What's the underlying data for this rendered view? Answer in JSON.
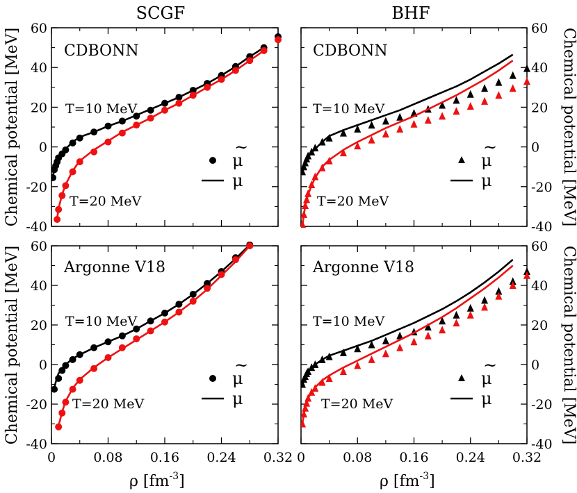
{
  "figure": {
    "col_titles": [
      "SCGF",
      "BHF"
    ],
    "xlabel": "ρ [fm",
    "xlabel_sup": "-3",
    "xlabel_end": "]",
    "ylabel": "Chemical potential [MeV]",
    "legend": {
      "mu_tilde": "μ",
      "tilde_mark": "~",
      "mu": "μ"
    },
    "colors": {
      "T10": "#000000",
      "T20": "#ee1111"
    }
  },
  "chart_data": [
    {
      "type": "line",
      "panel": "top-left",
      "method": "SCGF",
      "model_label": "CDBONN",
      "temp_labels": {
        "T10": "T=10 MeV",
        "T20": "T=20 MeV"
      },
      "xlim": [
        0,
        0.32
      ],
      "ylim": [
        -40,
        60
      ],
      "xticks": [
        0,
        0.08,
        0.16,
        0.24,
        0.32
      ],
      "xtick_labels": [
        "0",
        "0.08",
        "0.16",
        "0.24",
        "0.32"
      ],
      "yticks": [
        -40,
        -20,
        0,
        20,
        40,
        60
      ],
      "ytick_labels": [
        "-40",
        "-20",
        "0",
        "20",
        "40",
        "60"
      ],
      "series": [
        {
          "name": "μ T=10 MeV",
          "kind": "line",
          "color": "#000000",
          "x": [
            0.002,
            0.004,
            0.006,
            0.008,
            0.01,
            0.015,
            0.02,
            0.03,
            0.04,
            0.06,
            0.08,
            0.1,
            0.12,
            0.14,
            0.16,
            0.18,
            0.2,
            0.22,
            0.24,
            0.26,
            0.28,
            0.3
          ],
          "y": [
            -15,
            -11,
            -9,
            -7,
            -5,
            -3,
            -1,
            2.5,
            5,
            7.5,
            10.5,
            13,
            16,
            19,
            22,
            25,
            28.5,
            32,
            36,
            40.5,
            45.5,
            50
          ]
        },
        {
          "name": "μ̃ T=10 MeV",
          "kind": "circle",
          "color": "#000000",
          "x": [
            0.002,
            0.004,
            0.006,
            0.008,
            0.01,
            0.015,
            0.02,
            0.03,
            0.04,
            0.06,
            0.08,
            0.1,
            0.12,
            0.14,
            0.16,
            0.18,
            0.2,
            0.22,
            0.24,
            0.26,
            0.28,
            0.3,
            0.32
          ],
          "y": [
            -15.5,
            -11.5,
            -9.5,
            -7.5,
            -5.5,
            -3.5,
            -1.5,
            2,
            4.5,
            7.5,
            10.5,
            13,
            15.5,
            18.5,
            22,
            25,
            28.5,
            32,
            36,
            40.5,
            45.5,
            50,
            55.5
          ]
        },
        {
          "name": "μ T=20 MeV",
          "kind": "line",
          "color": "#ee1111",
          "x": [
            0.008,
            0.01,
            0.015,
            0.02,
            0.03,
            0.04,
            0.06,
            0.08,
            0.1,
            0.12,
            0.14,
            0.16,
            0.18,
            0.2,
            0.22,
            0.24,
            0.26,
            0.28,
            0.3
          ],
          "y": [
            -36,
            -31,
            -24,
            -19,
            -12,
            -7,
            -1.5,
            3,
            7.5,
            11,
            14.5,
            18.5,
            22,
            26,
            30,
            34,
            38.5,
            43.5,
            48.5
          ]
        },
        {
          "name": "μ̃ T=20 MeV",
          "kind": "circle",
          "color": "#ee1111",
          "x": [
            0.008,
            0.01,
            0.015,
            0.02,
            0.03,
            0.04,
            0.06,
            0.08,
            0.1,
            0.12,
            0.14,
            0.16,
            0.18,
            0.2,
            0.22,
            0.24,
            0.26,
            0.28,
            0.3,
            0.32
          ],
          "y": [
            -36.5,
            -31.5,
            -24.5,
            -19.5,
            -12.5,
            -7.5,
            -2.5,
            2.5,
            7,
            11,
            14.5,
            18.5,
            22,
            26,
            30,
            34,
            38.5,
            43.5,
            48.5,
            54
          ]
        }
      ]
    },
    {
      "type": "line",
      "panel": "top-right",
      "method": "BHF",
      "model_label": "CDBONN",
      "temp_labels": {
        "T10": "T=10 MeV",
        "T20": "T=20 MeV"
      },
      "xlim": [
        0,
        0.32
      ],
      "ylim": [
        -40,
        60
      ],
      "xticks": [
        0,
        0.08,
        0.16,
        0.24,
        0.32
      ],
      "xtick_labels": [
        "0",
        "0.08",
        "0.16",
        "0.24",
        "0.32"
      ],
      "yticks": [
        -40,
        -20,
        0,
        20,
        40,
        60
      ],
      "ytick_labels": [
        "-40",
        "-20",
        "0",
        "20",
        "40",
        "60"
      ],
      "series": [
        {
          "name": "μ T=10 MeV",
          "kind": "line",
          "color": "#000000",
          "x": [
            0.002,
            0.004,
            0.006,
            0.008,
            0.01,
            0.015,
            0.02,
            0.03,
            0.04,
            0.06,
            0.08,
            0.1,
            0.12,
            0.14,
            0.16,
            0.18,
            0.2,
            0.22,
            0.24,
            0.26,
            0.28,
            0.3
          ],
          "y": [
            -13,
            -10.5,
            -8.5,
            -6.5,
            -5,
            -3,
            -1,
            2.5,
            5.5,
            8.5,
            11,
            13.5,
            16,
            18.5,
            21.5,
            24.5,
            27.5,
            30.5,
            34,
            38,
            42,
            46.5
          ]
        },
        {
          "name": "μ̃ T=10 MeV",
          "kind": "triangle",
          "color": "#000000",
          "x": [
            0.002,
            0.004,
            0.006,
            0.008,
            0.01,
            0.015,
            0.02,
            0.03,
            0.04,
            0.06,
            0.08,
            0.1,
            0.12,
            0.14,
            0.16,
            0.18,
            0.2,
            0.22,
            0.24,
            0.26,
            0.28,
            0.3,
            0.32
          ],
          "y": [
            -12.5,
            -10,
            -8,
            -6,
            -4.5,
            -2.5,
            -0.5,
            2.5,
            4.5,
            7,
            9,
            11,
            13,
            15,
            17,
            19,
            21,
            23.5,
            26.5,
            29.5,
            32.5,
            36,
            39.5
          ]
        },
        {
          "name": "μ T=20 MeV",
          "kind": "line",
          "color": "#ee1111",
          "x": [
            0.002,
            0.004,
            0.006,
            0.008,
            0.01,
            0.015,
            0.02,
            0.03,
            0.04,
            0.06,
            0.08,
            0.1,
            0.12,
            0.14,
            0.16,
            0.18,
            0.2,
            0.22,
            0.24,
            0.26,
            0.28,
            0.3
          ],
          "y": [
            -40,
            -34,
            -30,
            -27,
            -24,
            -19.5,
            -15.5,
            -10,
            -6.5,
            -1.5,
            2.5,
            6,
            9.5,
            12.5,
            15.5,
            19,
            22.5,
            26,
            30,
            34,
            38.5,
            43.5
          ]
        },
        {
          "name": "μ̃ T=20 MeV",
          "kind": "triangle",
          "color": "#ee1111",
          "x": [
            0.002,
            0.004,
            0.006,
            0.008,
            0.01,
            0.015,
            0.02,
            0.03,
            0.04,
            0.06,
            0.08,
            0.1,
            0.12,
            0.14,
            0.16,
            0.18,
            0.2,
            0.22,
            0.24,
            0.26,
            0.28,
            0.3,
            0.32
          ],
          "y": [
            -39,
            -34,
            -29.5,
            -26.5,
            -23.5,
            -19,
            -15,
            -10.5,
            -7,
            -3,
            0.5,
            3.5,
            6.5,
            9,
            11.5,
            13.5,
            15.5,
            18,
            20.5,
            23,
            26,
            29.5,
            33
          ]
        }
      ]
    },
    {
      "type": "line",
      "panel": "bottom-left",
      "method": "SCGF",
      "model_label": "Argonne V18",
      "temp_labels": {
        "T10": "T=10 MeV",
        "T20": "T=20 MeV"
      },
      "xlim": [
        0,
        0.32
      ],
      "ylim": [
        -40,
        60
      ],
      "xticks": [
        0,
        0.08,
        0.16,
        0.24,
        0.32
      ],
      "xtick_labels": [
        "0",
        "0.08",
        "0.16",
        "0.24",
        "0.32"
      ],
      "yticks": [
        -40,
        -20,
        0,
        20,
        40,
        60
      ],
      "ytick_labels": [
        "-40",
        "-20",
        "0",
        "20",
        "40",
        "60"
      ],
      "series": [
        {
          "name": "μ T=10 MeV",
          "kind": "line",
          "color": "#000000",
          "x": [
            0.004,
            0.006,
            0.008,
            0.01,
            0.015,
            0.02,
            0.03,
            0.04,
            0.06,
            0.08,
            0.1,
            0.12,
            0.14,
            0.16,
            0.18,
            0.2,
            0.22,
            0.24,
            0.26,
            0.28
          ],
          "y": [
            -12,
            -9,
            -6.5,
            -4.5,
            -2,
            0,
            3,
            5,
            8.5,
            11.5,
            14.5,
            18,
            22,
            26,
            30.5,
            35.5,
            41,
            47,
            53.5,
            60.5
          ]
        },
        {
          "name": "μ̃ T=10 MeV",
          "kind": "circle",
          "color": "#000000",
          "x": [
            0.004,
            0.01,
            0.015,
            0.02,
            0.03,
            0.04,
            0.06,
            0.08,
            0.1,
            0.12,
            0.14,
            0.16,
            0.18,
            0.2,
            0.22,
            0.24,
            0.26,
            0.28
          ],
          "y": [
            -12.5,
            -7,
            -3,
            -0.5,
            2.5,
            5,
            8.5,
            11.5,
            14.5,
            18,
            22,
            26,
            30.5,
            35.5,
            41,
            47,
            54,
            60.5
          ]
        },
        {
          "name": "μ T=20 MeV",
          "kind": "line",
          "color": "#ee1111",
          "x": [
            0.01,
            0.015,
            0.02,
            0.03,
            0.04,
            0.06,
            0.08,
            0.1,
            0.12,
            0.14,
            0.16,
            0.18,
            0.2,
            0.22,
            0.24,
            0.26,
            0.28
          ],
          "y": [
            -31,
            -24,
            -18.5,
            -12,
            -7.5,
            -1.5,
            3.5,
            8,
            12.5,
            17,
            21.5,
            26.5,
            32,
            38,
            45,
            52,
            60
          ]
        },
        {
          "name": "μ̃ T=20 MeV",
          "kind": "circle",
          "color": "#ee1111",
          "x": [
            0.01,
            0.015,
            0.02,
            0.03,
            0.04,
            0.06,
            0.08,
            0.1,
            0.12,
            0.14,
            0.16,
            0.18,
            0.2,
            0.22,
            0.24,
            0.26,
            0.28
          ],
          "y": [
            -31.5,
            -24.5,
            -19,
            -12.5,
            -8,
            -2,
            3.5,
            8.5,
            13,
            17,
            21.5,
            26.5,
            32,
            38.5,
            45.5,
            53,
            60
          ]
        }
      ]
    },
    {
      "type": "line",
      "panel": "bottom-right",
      "method": "BHF",
      "model_label": "Argonne V18",
      "temp_labels": {
        "T10": "T=10 MeV",
        "T20": "T=20 MeV"
      },
      "xlim": [
        0,
        0.32
      ],
      "ylim": [
        -40,
        60
      ],
      "xticks": [
        0,
        0.08,
        0.16,
        0.24,
        0.32
      ],
      "xtick_labels": [
        "0",
        "0.08",
        "0.16",
        "0.24",
        "0.32"
      ],
      "yticks": [
        -40,
        -20,
        0,
        20,
        40,
        60
      ],
      "ytick_labels": [
        "-40",
        "-20",
        "0",
        "20",
        "40",
        "60"
      ],
      "series": [
        {
          "name": "μ T=10 MeV",
          "kind": "line",
          "color": "#000000",
          "x": [
            0.002,
            0.004,
            0.006,
            0.008,
            0.01,
            0.015,
            0.02,
            0.03,
            0.04,
            0.06,
            0.08,
            0.1,
            0.12,
            0.14,
            0.16,
            0.18,
            0.2,
            0.22,
            0.24,
            0.26,
            0.28,
            0.3
          ],
          "y": [
            -10,
            -7.5,
            -6,
            -4.5,
            -3.5,
            -1.5,
            0,
            2.5,
            4.5,
            7,
            9.5,
            12,
            15,
            18,
            21,
            24.5,
            28,
            32,
            36.5,
            41.5,
            47,
            53
          ]
        },
        {
          "name": "μ̃ T=10 MeV",
          "kind": "triangle",
          "color": "#000000",
          "x": [
            0.002,
            0.004,
            0.006,
            0.008,
            0.01,
            0.015,
            0.02,
            0.03,
            0.04,
            0.06,
            0.08,
            0.1,
            0.12,
            0.14,
            0.16,
            0.18,
            0.2,
            0.22,
            0.24,
            0.26,
            0.28,
            0.3,
            0.32
          ],
          "y": [
            -10,
            -7.5,
            -6,
            -4.5,
            -3.5,
            -1.5,
            0,
            2.5,
            4,
            6,
            8,
            10,
            12,
            14.5,
            16.5,
            19,
            22,
            25,
            28.5,
            32.5,
            37,
            42,
            47
          ]
        },
        {
          "name": "μ T=20 MeV",
          "kind": "line",
          "color": "#ee1111",
          "x": [
            0.002,
            0.004,
            0.006,
            0.008,
            0.01,
            0.015,
            0.02,
            0.03,
            0.04,
            0.06,
            0.08,
            0.1,
            0.12,
            0.14,
            0.16,
            0.18,
            0.2,
            0.22,
            0.24,
            0.26,
            0.28,
            0.3
          ],
          "y": [
            -30,
            -25,
            -21.5,
            -19,
            -17,
            -14,
            -11.5,
            -8,
            -5.5,
            -1.5,
            2,
            5.5,
            9,
            12.5,
            16,
            20,
            24,
            28.5,
            33.5,
            38.5,
            44,
            50
          ]
        },
        {
          "name": "μ̃ T=20 MeV",
          "kind": "triangle",
          "color": "#ee1111",
          "x": [
            0.002,
            0.004,
            0.006,
            0.008,
            0.01,
            0.015,
            0.02,
            0.03,
            0.04,
            0.06,
            0.08,
            0.1,
            0.12,
            0.14,
            0.16,
            0.18,
            0.2,
            0.22,
            0.24,
            0.26,
            0.28,
            0.3,
            0.32
          ],
          "y": [
            -30,
            -25,
            -22,
            -19.5,
            -17,
            -14,
            -12,
            -9,
            -7,
            -3.5,
            -0.5,
            2.5,
            5.5,
            8.5,
            11.5,
            14.5,
            17.5,
            21,
            25,
            29,
            34.5,
            40,
            45
          ]
        }
      ]
    }
  ]
}
